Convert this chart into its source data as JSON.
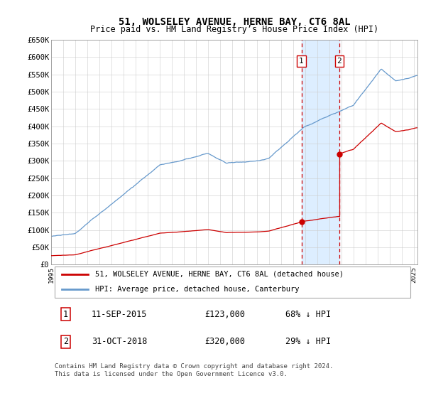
{
  "title": "51, WOLSELEY AVENUE, HERNE BAY, CT6 8AL",
  "subtitle": "Price paid vs. HM Land Registry’s House Price Index (HPI)",
  "legend_line1": "51, WOLSELEY AVENUE, HERNE BAY, CT6 8AL (detached house)",
  "legend_line2": "HPI: Average price, detached house, Canterbury",
  "annotation1_label": "1",
  "annotation1_date": "11-SEP-2015",
  "annotation1_price": "£123,000",
  "annotation1_hpi": "68% ↓ HPI",
  "annotation2_label": "2",
  "annotation2_date": "31-OCT-2018",
  "annotation2_price": "£320,000",
  "annotation2_hpi": "29% ↓ HPI",
  "footer": "Contains HM Land Registry data © Crown copyright and database right 2024.\nThis data is licensed under the Open Government Licence v3.0.",
  "hpi_color": "#6699cc",
  "price_color": "#cc0000",
  "annotation_box_color": "#cc0000",
  "shaded_region_color": "#ddeeff",
  "ylim": [
    0,
    650000
  ],
  "yticks": [
    0,
    50000,
    100000,
    150000,
    200000,
    250000,
    300000,
    350000,
    400000,
    450000,
    500000,
    550000,
    600000,
    650000
  ],
  "xtick_years": [
    1995,
    1996,
    1997,
    1998,
    1999,
    2000,
    2001,
    2002,
    2003,
    2004,
    2005,
    2006,
    2007,
    2008,
    2009,
    2010,
    2011,
    2012,
    2013,
    2014,
    2015,
    2016,
    2017,
    2018,
    2019,
    2020,
    2021,
    2022,
    2023,
    2024,
    2025
  ],
  "sale1_year": 2015.7,
  "sale1_price": 123000,
  "sale2_year": 2018.83,
  "sale2_price": 320000,
  "xlim_left": 1995,
  "xlim_right": 2025.3
}
